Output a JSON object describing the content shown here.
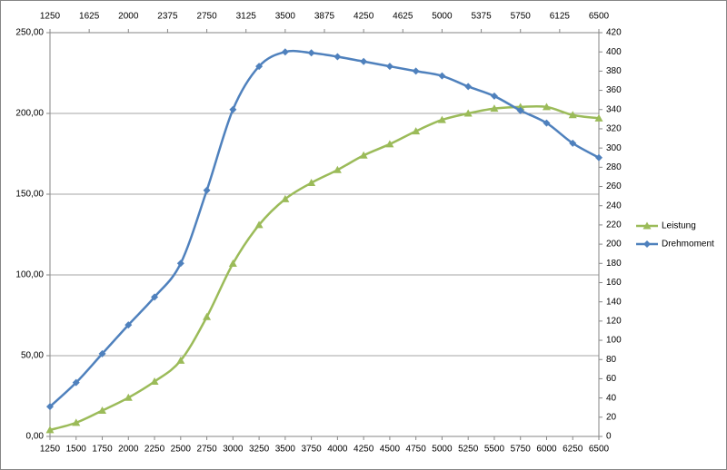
{
  "chart_data": {
    "type": "line",
    "x": [
      1250,
      1500,
      1750,
      2000,
      2250,
      2500,
      2750,
      3000,
      3250,
      3500,
      3750,
      4000,
      4250,
      4500,
      4750,
      5000,
      5250,
      5500,
      5750,
      6000,
      6250,
      6500
    ],
    "xlim": [
      1250,
      6500
    ],
    "x2ticks": [
      1250,
      1625,
      2000,
      2375,
      2750,
      3125,
      3500,
      3875,
      4250,
      4625,
      5000,
      5375,
      5750,
      6125,
      6500
    ],
    "ylim": [
      0,
      250
    ],
    "yticks": [
      {
        "value": 0,
        "label": "0,00"
      },
      {
        "value": 50,
        "label": "50,00"
      },
      {
        "value": 100,
        "label": "100,00"
      },
      {
        "value": 150,
        "label": "150,00"
      },
      {
        "value": 200,
        "label": "200,00"
      },
      {
        "value": 250,
        "label": "250,00"
      }
    ],
    "y2lim": [
      0,
      420
    ],
    "y2ticks": [
      0,
      20,
      40,
      60,
      80,
      100,
      120,
      140,
      160,
      180,
      200,
      220,
      240,
      260,
      280,
      300,
      320,
      340,
      360,
      380,
      400,
      420
    ],
    "grid": true,
    "legend": "right",
    "series": [
      {
        "name": "Leistung",
        "color": "#9bbb59",
        "marker": "triangle",
        "values": [
          4,
          8.5,
          16,
          24,
          34,
          47,
          74,
          107,
          131,
          147,
          157,
          165,
          174,
          181,
          189,
          196,
          200,
          203,
          204,
          204,
          199,
          197
        ]
      },
      {
        "name": "Drehmoment",
        "color": "#4f81bd",
        "marker": "diamond",
        "axis": "y2",
        "values": [
          31,
          56,
          86,
          116,
          145,
          180,
          256,
          340,
          385,
          400,
          399,
          395,
          390,
          385,
          380,
          375,
          364,
          354,
          339,
          326,
          305,
          290
        ]
      }
    ]
  }
}
